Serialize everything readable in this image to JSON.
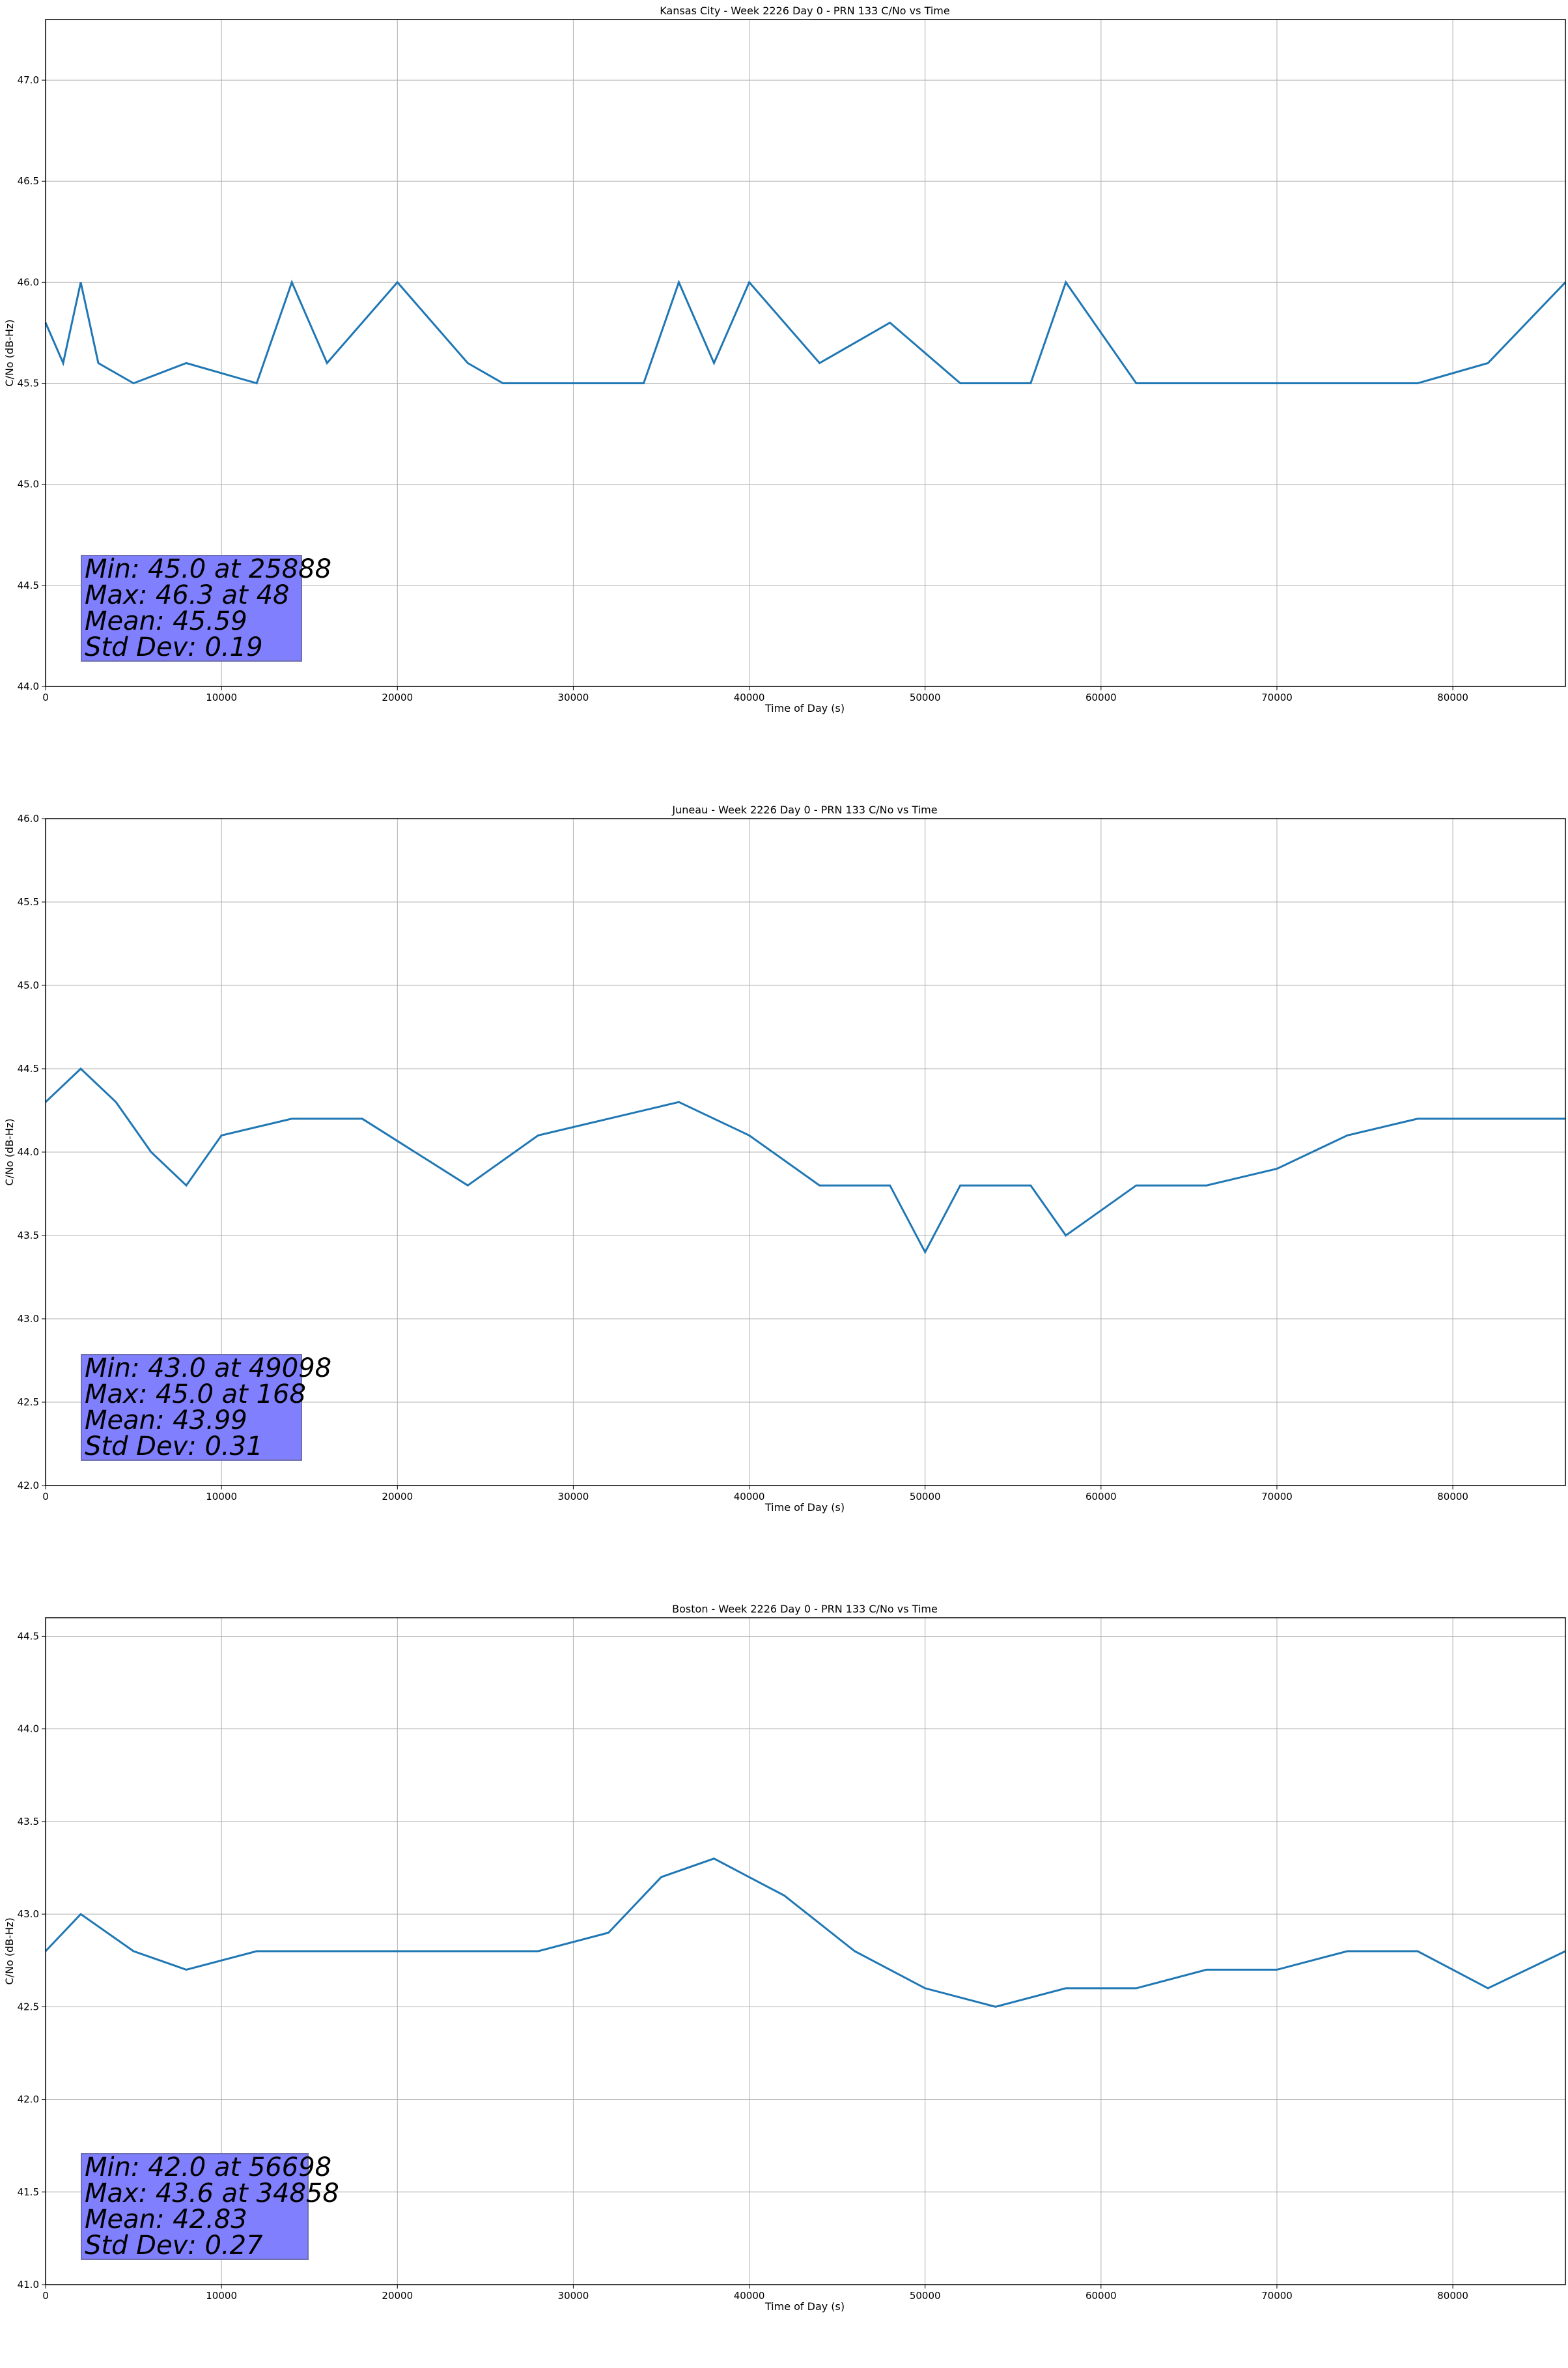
{
  "chart_data": [
    {
      "type": "line",
      "title": "Kansas City - Week 2226 Day 0 - PRN 133 C/No vs Time",
      "xlabel": "Time of Day (s)",
      "ylabel": "C/No (dB-Hz)",
      "xlim": [
        0,
        86400
      ],
      "ylim": [
        44.0,
        47.3
      ],
      "x_ticks": [
        0,
        10000,
        20000,
        30000,
        40000,
        50000,
        60000,
        70000,
        80000
      ],
      "y_ticks": [
        "44.0",
        "44.5",
        "45.0",
        "45.5",
        "46.0",
        "46.5",
        "47.0"
      ],
      "grid": true,
      "color": "#1f77b4",
      "series": [
        {
          "x": [
            0,
            1000,
            2000,
            3000,
            5000,
            8000,
            12000,
            14000,
            16000,
            20000,
            24000,
            26000,
            30000,
            34000,
            36000,
            38000,
            40000,
            44000,
            48000,
            52000,
            56000,
            58000,
            62000,
            66000,
            70000,
            74000,
            78000,
            82000,
            86400
          ],
          "y": [
            45.8,
            45.6,
            46.0,
            45.6,
            45.5,
            45.6,
            45.5,
            46.0,
            45.6,
            46.0,
            45.6,
            45.5,
            45.5,
            45.5,
            46.0,
            45.6,
            46.0,
            45.6,
            45.8,
            45.5,
            45.5,
            46.0,
            45.5,
            45.5,
            45.5,
            45.5,
            45.5,
            45.6,
            46.0
          ]
        }
      ],
      "stats": {
        "min": "Min: 45.0 at 25888",
        "max": "Max: 46.3 at 48",
        "mean": "Mean: 45.59",
        "std": "Std Dev: 0.19"
      }
    },
    {
      "type": "line",
      "title": "Juneau - Week 2226 Day 0 - PRN 133 C/No vs Time",
      "xlabel": "Time of Day (s)",
      "ylabel": "C/No (dB-Hz)",
      "xlim": [
        0,
        86400
      ],
      "ylim": [
        42.0,
        46.0
      ],
      "x_ticks": [
        0,
        10000,
        20000,
        30000,
        40000,
        50000,
        60000,
        70000,
        80000
      ],
      "y_ticks": [
        "42.0",
        "42.5",
        "43.0",
        "43.5",
        "44.0",
        "44.5",
        "45.0",
        "45.5",
        "46.0"
      ],
      "grid": true,
      "color": "#1f77b4",
      "series": [
        {
          "x": [
            0,
            2000,
            4000,
            6000,
            8000,
            10000,
            14000,
            18000,
            21000,
            24000,
            28000,
            32000,
            36000,
            40000,
            44000,
            48000,
            50000,
            52000,
            56000,
            58000,
            62000,
            66000,
            70000,
            74000,
            78000,
            82000,
            86400
          ],
          "y": [
            44.3,
            44.5,
            44.3,
            44.0,
            43.8,
            44.1,
            44.2,
            44.2,
            44.0,
            43.8,
            44.1,
            44.2,
            44.3,
            44.1,
            43.8,
            43.8,
            43.4,
            43.8,
            43.8,
            43.5,
            43.8,
            43.8,
            43.9,
            44.1,
            44.2,
            44.2,
            44.2
          ]
        }
      ],
      "stats": {
        "min": "Min: 43.0 at 49098",
        "max": "Max: 45.0 at 168",
        "mean": "Mean: 43.99",
        "std": "Std Dev: 0.31"
      }
    },
    {
      "type": "line",
      "title": "Boston - Week 2226 Day 0 - PRN 133 C/No vs Time",
      "xlabel": "Time of Day (s)",
      "ylabel": "C/No (dB-Hz)",
      "xlim": [
        0,
        86400
      ],
      "ylim": [
        41.0,
        44.6
      ],
      "x_ticks": [
        0,
        10000,
        20000,
        30000,
        40000,
        50000,
        60000,
        70000,
        80000
      ],
      "y_ticks": [
        "41.0",
        "41.5",
        "42.0",
        "42.5",
        "43.0",
        "43.5",
        "44.0",
        "44.5"
      ],
      "grid": true,
      "color": "#1f77b4",
      "series": [
        {
          "x": [
            0,
            2000,
            5000,
            8000,
            12000,
            16000,
            20000,
            24000,
            28000,
            32000,
            35000,
            38000,
            42000,
            46000,
            50000,
            54000,
            58000,
            62000,
            66000,
            70000,
            74000,
            78000,
            82000,
            86400
          ],
          "y": [
            42.8,
            43.0,
            42.8,
            42.7,
            42.8,
            42.8,
            42.8,
            42.8,
            42.8,
            42.9,
            43.2,
            43.3,
            43.1,
            42.8,
            42.6,
            42.5,
            42.6,
            42.6,
            42.7,
            42.7,
            42.8,
            42.8,
            42.6,
            42.8
          ]
        }
      ],
      "stats": {
        "min": "Min: 42.0 at 56698",
        "max": "Max: 43.6 at 34858",
        "mean": "Mean: 42.83",
        "std": "Std Dev: 0.27"
      }
    }
  ]
}
